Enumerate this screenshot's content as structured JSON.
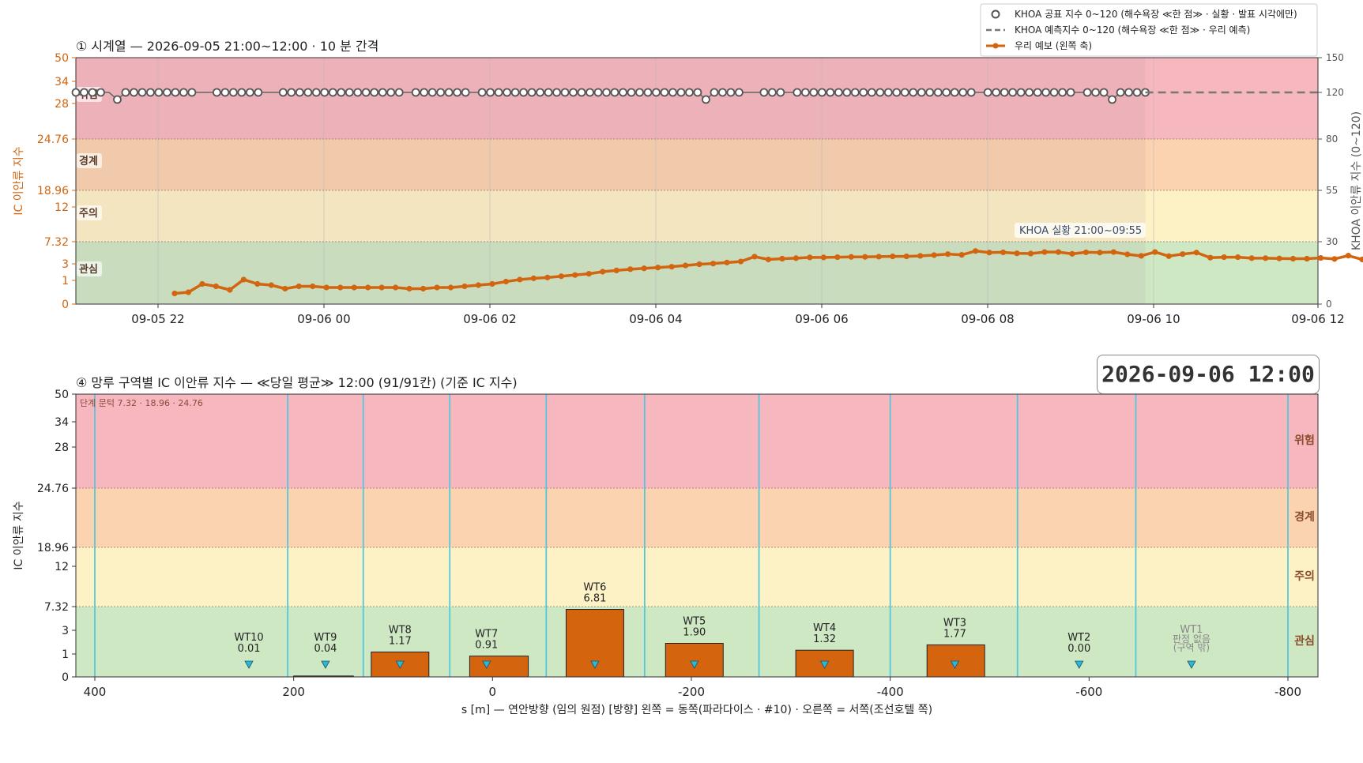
{
  "colors": {
    "danger": "#f7b7bf",
    "warning": "#fbd3b0",
    "caution": "#fdf1c6",
    "attention": "#cfe8c4",
    "forecast_line": "#d2650f",
    "observed_marker": "#555555",
    "section_line": "#55c7dc",
    "bar_fill": "#d4640e",
    "accent_axis": "#d2650f"
  },
  "badge": {
    "text": "2026-09-06  12:00"
  },
  "legend": {
    "items": [
      {
        "label": "KHOA 공표 지수 0~120 (해수욕장 ≪한 점≫ · 실황 · 발표 시각에만)",
        "icon": "open-circle-marker"
      },
      {
        "label": "KHOA 예측지수 0~120 (해수욕장 ≪한 점≫ · 우리 예측)",
        "icon": "dashed-line"
      },
      {
        "label": "우리 예보 (왼쪽 축)",
        "icon": "line-with-dots"
      }
    ]
  },
  "chart_data": [
    {
      "type": "line",
      "title": "① 시계열 — 2026-09-05 21:00~12:00 · 10 분 간격",
      "ylabel": "IC 이안류 지수",
      "y2label": "KHOA 이안류 지수 (0~120)",
      "x_ticks": [
        "09-05 22",
        "09-06 00",
        "09-06 02",
        "09-06 04",
        "09-06 06",
        "09-06 08",
        "09-06 10",
        "09-06 12"
      ],
      "x_start": "2026-09-05 21:12",
      "x_end": "2026-09-06 12:00",
      "y_ticks": [
        "0",
        "1",
        "3",
        "7.32",
        "12",
        "18.96",
        "24.76",
        "28",
        "34",
        "50"
      ],
      "y2_ticks": [
        "0",
        "30",
        "55",
        "80",
        "120",
        "150"
      ],
      "bands": [
        {
          "label": "위험",
          "from": 24.76,
          "to": 50
        },
        {
          "label": "경계",
          "from": 18.96,
          "to": 24.76
        },
        {
          "label": "주의",
          "from": 7.32,
          "to": 18.96
        },
        {
          "label": "관심",
          "from": 0,
          "to": 7.32
        }
      ],
      "annotation": "KHOA 실황 21:00~09:55",
      "observed_until": "09-06 09:55",
      "series": [
        {
          "name": "우리 예보 (왼쪽 축)",
          "axis": "left",
          "interval_min": 10,
          "values": [
            0.45,
            0.5,
            0.85,
            0.75,
            0.6,
            1.1,
            0.85,
            0.8,
            0.65,
            0.75,
            0.75,
            0.7,
            0.7,
            0.7,
            0.7,
            0.7,
            0.7,
            0.65,
            0.65,
            0.7,
            0.7,
            0.75,
            0.8,
            0.85,
            0.95,
            1.1,
            1.25,
            1.35,
            1.5,
            1.65,
            1.8,
            2.05,
            2.2,
            2.35,
            2.45,
            2.55,
            2.65,
            2.8,
            2.95,
            3.05,
            3.25,
            3.45,
            4.4,
            3.85,
            4.0,
            4.1,
            4.25,
            4.25,
            4.3,
            4.35,
            4.35,
            4.4,
            4.45,
            4.45,
            4.55,
            4.7,
            4.9,
            4.75,
            5.5,
            5.2,
            5.25,
            5.05,
            5.0,
            5.3,
            5.3,
            4.95,
            5.25,
            5.2,
            5.3,
            4.85,
            4.55,
            5.3,
            4.5,
            4.9,
            5.2,
            4.2,
            4.3,
            4.3,
            4.1,
            4.1,
            4.05,
            4.0,
            4.0,
            4.15,
            3.95,
            4.6,
            3.85,
            3.8,
            3.85,
            3.85,
            3.75,
            3.3,
            3.5,
            3.05,
            3.0,
            2.95,
            3.35,
            2.8,
            2.75,
            2.65
          ]
        },
        {
          "name": "KHOA 공표 지수 0~120 (해수욕장 ≪한 점≫ · 실황 · 발표 시각에만)",
          "axis": "right",
          "values": [
            120,
            120,
            120,
            120,
            120,
            120,
            120,
            120,
            120,
            120,
            120,
            120,
            120,
            120,
            120,
            120,
            120,
            120,
            120,
            120,
            120,
            120,
            120,
            120,
            120,
            120,
            120,
            120,
            120,
            120,
            120,
            120,
            120,
            120,
            120,
            120,
            120,
            120,
            120,
            120,
            120,
            120,
            120,
            120,
            120,
            120,
            120,
            120,
            120,
            120,
            120,
            120,
            120,
            120,
            120,
            120,
            120,
            120,
            120,
            120,
            120,
            120,
            120,
            120,
            120,
            120,
            120,
            120,
            120,
            120,
            120,
            120,
            120,
            120,
            120,
            120,
            120,
            120,
            120,
            120,
            120,
            120,
            120,
            120,
            120,
            120,
            120,
            120,
            120,
            120,
            120,
            120,
            120,
            120,
            120,
            120,
            120,
            120,
            120,
            120,
            120,
            120,
            120,
            120,
            120,
            120,
            120,
            120,
            120,
            120,
            120,
            120,
            120,
            120,
            120,
            120,
            120,
            120,
            120,
            120,
            120,
            120,
            120,
            120,
            120,
            120,
            120,
            120,
            120,
            120
          ]
        },
        {
          "name": "KHOA 예측지수 0~120 (해수욕장 ≪한 점≫ · 우리 예측)",
          "axis": "right",
          "style": "dashed",
          "value": 120
        }
      ]
    },
    {
      "type": "bar",
      "title": "④ 망루 구역별 IC 이안류 지수 — ≪당일 평균≫ 12:00  (91/91칸)   (기준 IC 지수)",
      "subtitle": "단계 문턱 7.32 · 18.96 · 24.76",
      "xlabel": "s [m] — 연안방향 (임의 원점)     [방향] 왼쪽 = 동쪽(파라다이스 · #10) · 오른쪽 = 서쪽(조선호텔 쪽)",
      "ylabel": "IC 이안류 지수",
      "x_ticks": [
        "400",
        "200",
        "0",
        "-200",
        "-400",
        "-600",
        "-800"
      ],
      "xlim": [
        420,
        -830
      ],
      "y_ticks": [
        "0",
        "1",
        "3",
        "7.32",
        "12",
        "18.96",
        "24.76",
        "28",
        "34",
        "50"
      ],
      "bands": [
        {
          "label": "위험",
          "from": 24.76,
          "to": 50
        },
        {
          "label": "경계",
          "from": 18.96,
          "to": 24.76
        },
        {
          "label": "주의",
          "from": 7.32,
          "to": 18.96
        },
        {
          "label": "관심",
          "from": 0,
          "to": 7.32
        }
      ],
      "section_boundaries": [
        400,
        206,
        130,
        43,
        -54,
        -153,
        -268,
        -400,
        -528,
        -647,
        -800
      ],
      "bars": [
        {
          "name": "WT10",
          "value": 0.01,
          "label": "0.01",
          "center": 245,
          "from": 245,
          "to": 245
        },
        {
          "name": "WT9",
          "value": 0.04,
          "label": "0.04",
          "center": 168,
          "from": 200,
          "to": 140
        },
        {
          "name": "WT8",
          "value": 1.17,
          "label": "1.17",
          "center": 93,
          "from": 122,
          "to": 64
        },
        {
          "name": "WT7",
          "value": 0.91,
          "label": "0.91",
          "center": 6,
          "from": 23,
          "to": -36
        },
        {
          "name": "WT6",
          "value": 6.81,
          "label": "6.81",
          "center": -103,
          "from": -74,
          "to": -132
        },
        {
          "name": "WT5",
          "value": 1.9,
          "label": "1.90",
          "center": -203,
          "from": -174,
          "to": -232
        },
        {
          "name": "WT4",
          "value": 1.32,
          "label": "1.32",
          "center": -334,
          "from": -305,
          "to": -363
        },
        {
          "name": "WT3",
          "value": 1.77,
          "label": "1.77",
          "center": -465,
          "from": -437,
          "to": -495
        },
        {
          "name": "WT2",
          "value": 0.0,
          "label": "0.00",
          "center": -590,
          "from": -590,
          "to": -590
        },
        {
          "name": "WT1",
          "value": null,
          "label": "판정 없음\n(구역 밖)",
          "center": -703,
          "from": -703,
          "to": -703
        }
      ]
    }
  ]
}
